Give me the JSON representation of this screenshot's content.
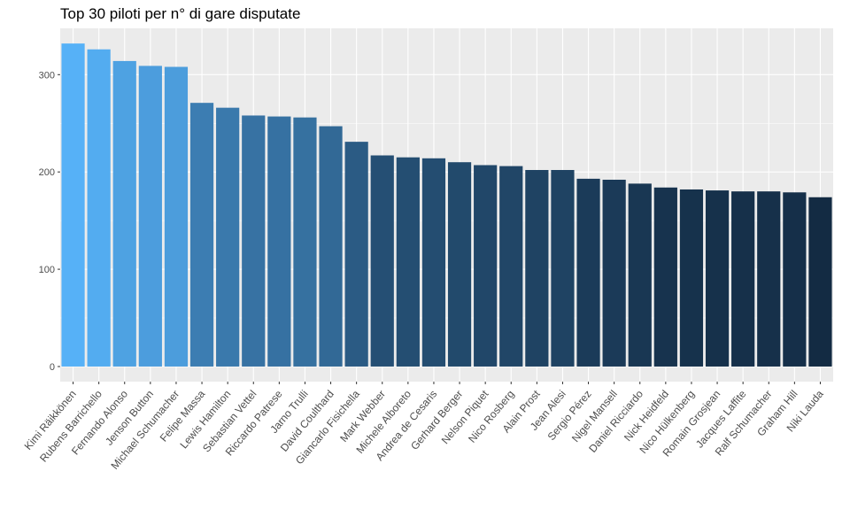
{
  "chart_data": {
    "type": "bar",
    "title": "Top 30 piloti per n° di gare disputate",
    "xlabel": "",
    "ylabel": "",
    "ylim": [
      0,
      350
    ],
    "yticks": [
      0,
      100,
      200,
      300
    ],
    "grid": true,
    "legend": "none",
    "colors": {
      "panel": "#EBEBEB",
      "grid_major": "#FFFFFF",
      "bar_high": "#56B1F7",
      "bar_low": "#132B43"
    },
    "categories": [
      "Kimi Räikkönen",
      "Rubens Barrichello",
      "Fernando Alonso",
      "Jenson Button",
      "Michael Schumacher",
      "Felipe Massa",
      "Lewis Hamilton",
      "Sebastian Vettel",
      "Riccardo Patrese",
      "Jarno Trulli",
      "David Coulthard",
      "Giancarlo Fisichella",
      "Mark Webber",
      "Michele Alboreto",
      "Andrea de Cesaris",
      "Gerhard Berger",
      "Nelson Piquet",
      "Nico Rosberg",
      "Alain Prost",
      "Jean Alesi",
      "Sergio Pérez",
      "Nigel Mansell",
      "Daniel Ricciardo",
      "Nick Heidfeld",
      "Nico Hülkenberg",
      "Romain Grosjean",
      "Jacques Laffite",
      "Ralf Schumacher",
      "Graham Hill",
      "Niki Lauda"
    ],
    "values": [
      332,
      326,
      314,
      309,
      308,
      271,
      266,
      258,
      257,
      256,
      247,
      231,
      217,
      215,
      214,
      210,
      207,
      206,
      202,
      202,
      193,
      192,
      188,
      184,
      182,
      181,
      180,
      180,
      179,
      174
    ]
  }
}
